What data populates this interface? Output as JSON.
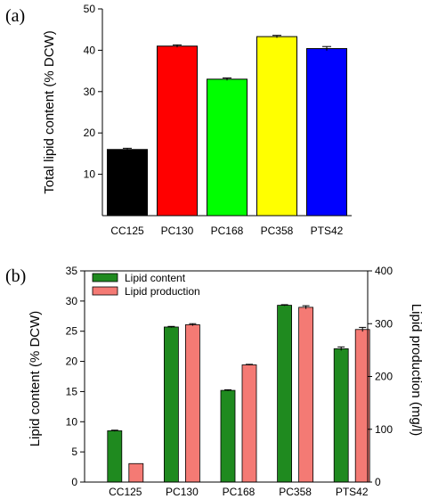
{
  "chart_data": [
    {
      "panel_label": "(a)",
      "type": "bar",
      "categories": [
        "CC125",
        "PC130",
        "PC168",
        "PC358",
        "PTS42"
      ],
      "values": [
        16.0,
        41.0,
        33.0,
        43.3,
        40.4
      ],
      "errors": [
        0.3,
        0.3,
        0.3,
        0.3,
        0.5
      ],
      "colors": [
        "#000000",
        "#ff0000",
        "#00ff00",
        "#ffff00",
        "#0000ff"
      ],
      "ylabel": "Total lipid content (% DCW)",
      "ylim": [
        0,
        50
      ],
      "yticks": [
        10,
        20,
        30,
        40,
        50
      ],
      "grid": false
    },
    {
      "panel_label": "(b)",
      "type": "bar",
      "categories": [
        "CC125",
        "PC130",
        "PC168",
        "PC358",
        "PTS42"
      ],
      "series": [
        {
          "name": "Lipid content",
          "axis": "left",
          "color": "#1f8a1f",
          "values": [
            8.5,
            25.7,
            15.2,
            29.3,
            22.1
          ],
          "errors": [
            0.1,
            0.1,
            0.1,
            0.1,
            0.3
          ]
        },
        {
          "name": "Lipid production",
          "axis": "right",
          "color": "#f47a74",
          "values": [
            35,
            298,
            222,
            331,
            289
          ],
          "errors": [
            0,
            2,
            1,
            3,
            4
          ]
        }
      ],
      "ylabel": "Lipid content (% DCW)",
      "ylim": [
        0,
        35
      ],
      "yticks": [
        0,
        5,
        10,
        15,
        20,
        25,
        30,
        35
      ],
      "y2label": "Lipid production (mg/l)",
      "y2lim": [
        0,
        400
      ],
      "y2ticks": [
        0,
        100,
        200,
        300,
        400
      ],
      "legend": "top-left",
      "grid": false
    }
  ]
}
